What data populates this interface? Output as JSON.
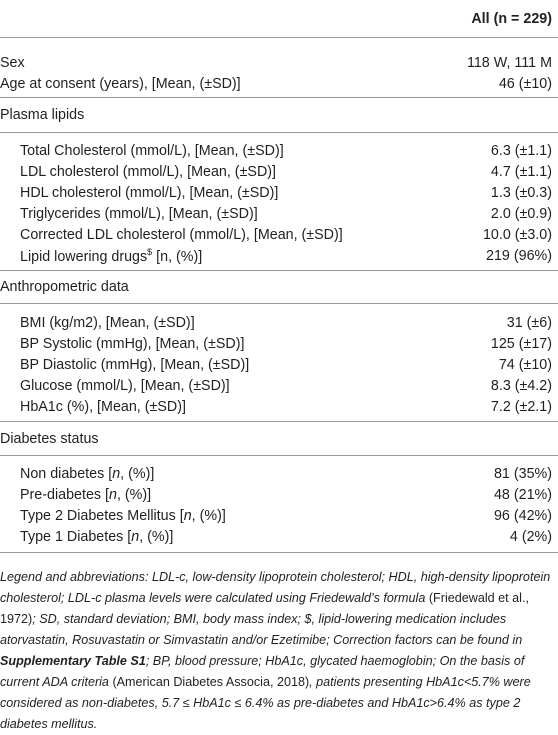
{
  "table": {
    "column_header": "All (n = 229)",
    "groups": [
      {
        "rows": [
          {
            "label": "Sex",
            "value": "118 W, 111 M"
          },
          {
            "label": "Age at consent (years), [Mean, (±SD)]",
            "value": "46 (±10)"
          }
        ]
      },
      {
        "title": "Plasma lipids",
        "rows": [
          {
            "label": "Total Cholesterol (mmol/L), [Mean, (±SD)]",
            "value": "6.3 (±1.1)"
          },
          {
            "label": "LDL cholesterol (mmol/L), [Mean, (±SD)]",
            "value": "4.7 (±1.1)"
          },
          {
            "label": "HDL cholesterol (mmol/L), [Mean, (±SD)]",
            "value": "1.3 (±0.3)"
          },
          {
            "label": "Triglycerides (mmol/L), [Mean, (±SD)]",
            "value": "2.0 (±0.9)"
          },
          {
            "label": "Corrected LDL cholesterol (mmol/L), [Mean, (±SD)]",
            "value": "10.0 (±3.0)"
          },
          {
            "label": [
              "Lipid lowering drugs",
              "$",
              " [n, (%)]"
            ],
            "value": "219 (96%)"
          }
        ]
      },
      {
        "title": "Anthropometric data",
        "rows": [
          {
            "label": "BMI (kg/m2), [Mean, (±SD)]",
            "value": "31 (±6)"
          },
          {
            "label": "BP Systolic (mmHg), [Mean, (±SD)]",
            "value": "125 (±17)"
          },
          {
            "label": "BP Diastolic (mmHg), [Mean, (±SD)]",
            "value": "74 (±10)"
          },
          {
            "label": "Glucose (mmol/L), [Mean, (±SD)]",
            "value": "8.3 (±4.2)"
          },
          {
            "label": "HbA1c (%), [Mean, (±SD)]",
            "value": "7.2 (±2.1)"
          }
        ]
      },
      {
        "title": "Diabetes status",
        "rows": [
          {
            "label": [
              "Non diabetes [",
              "n",
              ", (%)]"
            ],
            "value": "81 (35%)"
          },
          {
            "label": [
              "Pre-diabetes [",
              "n",
              ", (%)]"
            ],
            "value": "48 (21%)"
          },
          {
            "label": [
              "Type 2 Diabetes Mellitus [",
              "n",
              ", (%)]"
            ],
            "value": "96 (42%)"
          },
          {
            "label": [
              "Type 1 Diabetes [",
              "n",
              ", (%)]"
            ],
            "value": "4 (2%)"
          }
        ]
      }
    ],
    "footnote": [
      "Legend and abbreviations: LDL-c, low-density lipoprotein cholesterol; HDL, high-density lipoprotein cholesterol; LDL-c plasma levels were calculated using Friedewald’s formula ",
      "(Friedewald et al., 1972)",
      "; SD, standard deviation; BMI, body mass index; $, lipid-lowering medication includes atorvastatin, Rosuvastatin or Simvastatin and/or Ezetimibe; Correction factors can be found in ",
      "Supplementary Table S1",
      "; BP, blood pressure; HbA1c, glycated haemoglobin; On the basis of current ADA criteria ",
      "(American Diabetes Associa, 2018)",
      ", patients presenting HbA1c<5.7% were considered as non-diabetes, 5.7 ≤ HbA1c ≤ 6.4% as pre-diabetes and HbA1c>6.4% as type 2 diabetes mellitus."
    ]
  }
}
